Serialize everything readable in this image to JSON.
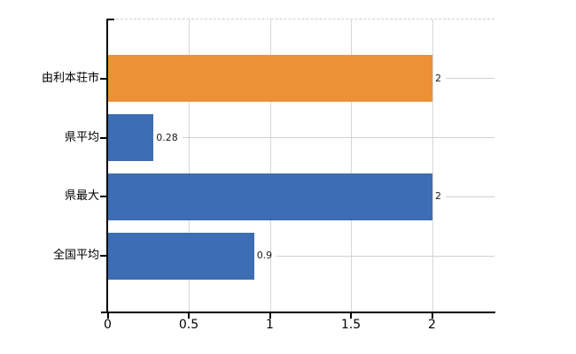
{
  "chart_data": {
    "type": "bar",
    "orientation": "horizontal",
    "title": "",
    "categories": [
      "由利本荘市",
      "県平均",
      "県最大",
      "全国平均"
    ],
    "values": [
      2,
      0.28,
      2,
      0.9
    ],
    "value_labels": [
      "2",
      "0.28",
      "2",
      "0.9"
    ],
    "bar_colors": [
      "#ed9137",
      "#3d6db3",
      "#3d6db3",
      "#3d6db3"
    ],
    "xlabel": "",
    "ylabel": "",
    "xlim": [
      0,
      2.4
    ],
    "x_ticks": [
      {
        "value": 0,
        "label": "0"
      },
      {
        "value": 0.5,
        "label": "0.5"
      },
      {
        "value": 1,
        "label": "1"
      },
      {
        "value": 1.5,
        "label": "1.5"
      },
      {
        "value": 2,
        "label": "2"
      }
    ],
    "grid": true,
    "legend": false,
    "colors": {
      "highlight_bar": "#ed9137",
      "default_bar": "#3d6db3",
      "axis": "#000000",
      "gridline": "#d7d7d7",
      "category_line": "#ccd3cb"
    }
  }
}
